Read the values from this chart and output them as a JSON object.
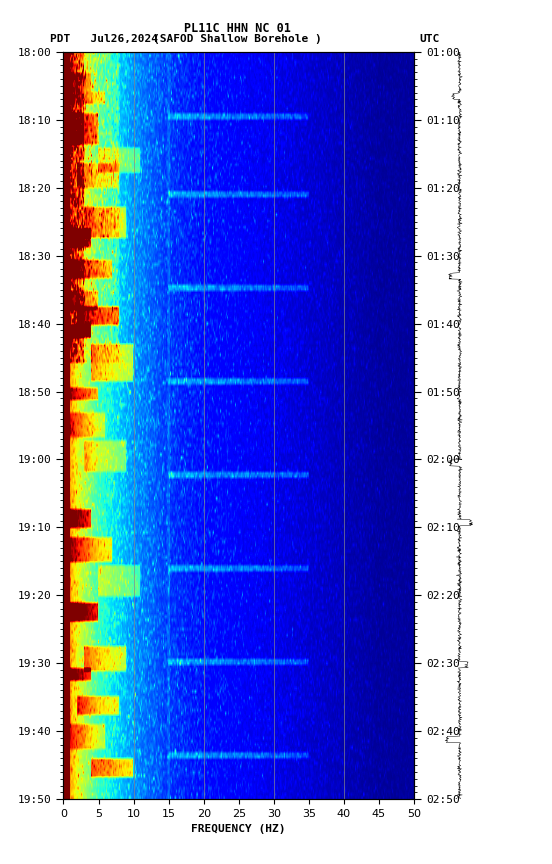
{
  "title_line1": "PL11C HHN NC 01",
  "title_line2_left": "PDT   Jul26,2024",
  "title_line2_mid": "(SAFOD Shallow Borehole )",
  "title_line2_right": "UTC",
  "left_yticks": [
    "18:00",
    "18:10",
    "18:20",
    "18:30",
    "18:40",
    "18:50",
    "19:00",
    "19:10",
    "19:20",
    "19:30",
    "19:40",
    "19:50"
  ],
  "right_yticks": [
    "01:00",
    "01:10",
    "01:20",
    "01:30",
    "01:40",
    "01:50",
    "02:00",
    "02:10",
    "02:20",
    "02:30",
    "02:40",
    "02:50"
  ],
  "xticks": [
    0,
    5,
    10,
    15,
    20,
    25,
    30,
    35,
    40,
    45,
    50
  ],
  "xlabel": "FREQUENCY (HZ)",
  "freq_min": 0,
  "freq_max": 50,
  "time_steps": 240,
  "freq_steps": 400,
  "colormap": "jet",
  "background_color": "#ffffff",
  "vlines_x": [
    10,
    20,
    30,
    40
  ],
  "fig_width": 5.52,
  "fig_height": 8.64,
  "dpi": 100
}
